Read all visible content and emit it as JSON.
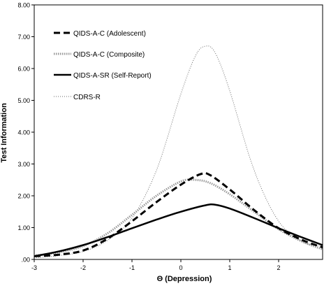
{
  "chart_data": {
    "type": "line",
    "xlabel": "Θ (Depression)",
    "ylabel": "Test Information",
    "xlim": [
      -3,
      2.9
    ],
    "ylim": [
      0,
      8
    ],
    "x_ticks": [
      "-3",
      "-2",
      "-1",
      "0",
      "1",
      "2"
    ],
    "y_ticks": [
      ".00",
      "1.00",
      "2.00",
      "3.00",
      "4.00",
      "5.00",
      "6.00",
      "7.00",
      "8.00"
    ],
    "grid": false,
    "legend_position": "top-left",
    "series": [
      {
        "name": "QIDS-A-C (Adolescent)",
        "style": "long-dash",
        "color": "#000000",
        "points": [
          [
            -3,
            0.1
          ],
          [
            -2.5,
            0.15
          ],
          [
            -2,
            0.28
          ],
          [
            -1.5,
            0.65
          ],
          [
            -1,
            1.2
          ],
          [
            -0.5,
            1.8
          ],
          [
            0,
            2.35
          ],
          [
            0.4,
            2.68
          ],
          [
            0.6,
            2.65
          ],
          [
            1,
            2.2
          ],
          [
            1.5,
            1.55
          ],
          [
            2,
            0.98
          ],
          [
            2.5,
            0.6
          ],
          [
            2.9,
            0.38
          ]
        ]
      },
      {
        "name": "QIDS-A-C (Composite)",
        "style": "gray-dotted-thick",
        "color": "#9a9a9a",
        "points": [
          [
            -3,
            0.12
          ],
          [
            -2.5,
            0.22
          ],
          [
            -2,
            0.42
          ],
          [
            -1.5,
            0.82
          ],
          [
            -1,
            1.4
          ],
          [
            -0.5,
            2.0
          ],
          [
            0,
            2.45
          ],
          [
            0.3,
            2.5
          ],
          [
            0.6,
            2.4
          ],
          [
            1,
            2.05
          ],
          [
            1.5,
            1.5
          ],
          [
            2,
            0.95
          ],
          [
            2.5,
            0.55
          ],
          [
            2.9,
            0.32
          ]
        ]
      },
      {
        "name": "QIDS-A-SR (Self-Report)",
        "style": "solid",
        "color": "#000000",
        "points": [
          [
            -3,
            0.1
          ],
          [
            -2.5,
            0.25
          ],
          [
            -2,
            0.45
          ],
          [
            -1.5,
            0.7
          ],
          [
            -1,
            0.98
          ],
          [
            -0.5,
            1.25
          ],
          [
            0,
            1.5
          ],
          [
            0.5,
            1.7
          ],
          [
            0.7,
            1.72
          ],
          [
            1,
            1.6
          ],
          [
            1.5,
            1.3
          ],
          [
            2,
            0.98
          ],
          [
            2.5,
            0.68
          ],
          [
            2.9,
            0.45
          ]
        ]
      },
      {
        "name": "CDRS-R",
        "style": "fine-dotted",
        "color": "#6a6a6a",
        "points": [
          [
            -3,
            0.05
          ],
          [
            -2.5,
            0.12
          ],
          [
            -2,
            0.25
          ],
          [
            -1.5,
            0.6
          ],
          [
            -1,
            1.3
          ],
          [
            -0.5,
            2.8
          ],
          [
            0,
            5.2
          ],
          [
            0.3,
            6.4
          ],
          [
            0.5,
            6.7
          ],
          [
            0.7,
            6.5
          ],
          [
            1,
            5.3
          ],
          [
            1.5,
            2.8
          ],
          [
            2,
            1.2
          ],
          [
            2.5,
            0.55
          ],
          [
            2.9,
            0.42
          ]
        ]
      }
    ]
  }
}
